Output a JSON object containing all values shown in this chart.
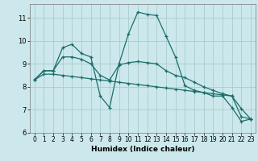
{
  "xlabel": "Humidex (Indice chaleur)",
  "bg_color": "#cce8ec",
  "grid_color": "#aacccc",
  "line_color": "#1a6e6a",
  "xlim": [
    -0.5,
    23.5
  ],
  "ylim": [
    6.0,
    11.6
  ],
  "yticks": [
    6,
    7,
    8,
    9,
    10,
    11
  ],
  "xticks": [
    0,
    1,
    2,
    3,
    4,
    5,
    6,
    7,
    8,
    9,
    10,
    11,
    12,
    13,
    14,
    15,
    16,
    17,
    18,
    19,
    20,
    21,
    22,
    23
  ],
  "series": [
    [
      8.3,
      8.7,
      8.7,
      9.7,
      9.85,
      9.45,
      9.3,
      7.6,
      7.1,
      9.0,
      10.3,
      11.25,
      11.15,
      11.1,
      10.2,
      9.3,
      8.05,
      7.85,
      7.75,
      7.6,
      7.6,
      7.1,
      6.5,
      6.6
    ],
    [
      8.3,
      8.7,
      8.7,
      9.3,
      9.3,
      9.2,
      9.0,
      8.5,
      8.3,
      8.95,
      9.05,
      9.1,
      9.05,
      9.0,
      8.7,
      8.5,
      8.4,
      8.2,
      8.0,
      7.85,
      7.7,
      7.6,
      6.7,
      6.6
    ],
    [
      8.3,
      8.55,
      8.55,
      8.5,
      8.45,
      8.4,
      8.35,
      8.3,
      8.25,
      8.2,
      8.15,
      8.1,
      8.05,
      8.0,
      7.95,
      7.9,
      7.85,
      7.8,
      7.75,
      7.7,
      7.65,
      7.6,
      7.05,
      6.6
    ]
  ]
}
